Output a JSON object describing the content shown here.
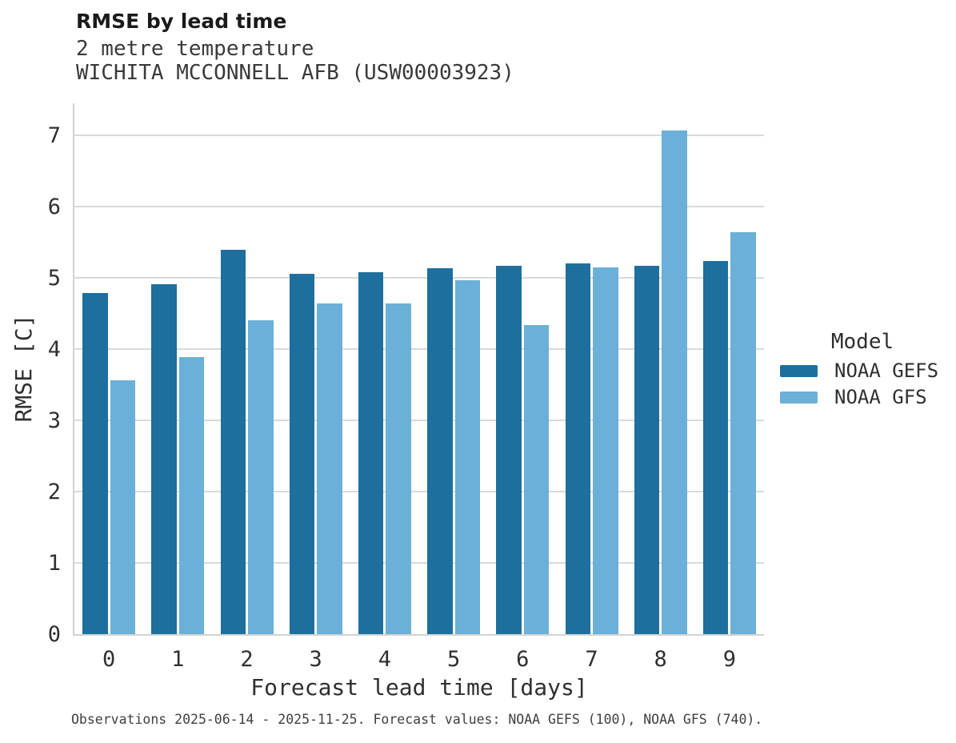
{
  "header": {
    "title": "RMSE by lead time",
    "subtitle_line1": "2 metre temperature",
    "subtitle_line2": "WICHITA MCCONNELL AFB (USW00003923)"
  },
  "chart_data": {
    "type": "bar",
    "categories": [
      "0",
      "1",
      "2",
      "3",
      "4",
      "5",
      "6",
      "7",
      "8",
      "9"
    ],
    "series": [
      {
        "name": "NOAA GEFS",
        "color": "#1d6f9e",
        "values": [
          4.79,
          4.91,
          5.39,
          5.06,
          5.08,
          5.13,
          5.17,
          5.2,
          5.17,
          5.24
        ]
      },
      {
        "name": "NOAA GFS",
        "color": "#6bb0d8",
        "values": [
          3.56,
          3.89,
          4.4,
          4.64,
          4.64,
          4.97,
          4.34,
          5.15,
          7.07,
          5.64
        ]
      }
    ],
    "title": "RMSE by lead time",
    "subtitle": "2 metre temperature — WICHITA MCCONNELL AFB (USW00003923)",
    "xlabel": "Forecast lead time [days]",
    "ylabel": "RMSE [C]",
    "ylim": [
      0,
      7.45
    ],
    "yticks": [
      0,
      1,
      2,
      3,
      4,
      5,
      6,
      7
    ],
    "grid": "horizontal",
    "legend_position": "right",
    "legend_title": "Model"
  },
  "legend": {
    "title": "Model",
    "entries": [
      {
        "label": "NOAA GEFS",
        "color": "#1d6f9e"
      },
      {
        "label": "NOAA GFS",
        "color": "#6bb0d8"
      }
    ]
  },
  "caption": "Observations 2025-06-14 - 2025-11-25. Forecast values: NOAA GEFS (100), NOAA GFS (740).",
  "colors": {
    "gefs_bar": "#1d6f9e",
    "gfs_bar": "#6bb0d8",
    "gridline": "#dadada",
    "spine": "#d2d2d2",
    "background": "#ffffff"
  }
}
